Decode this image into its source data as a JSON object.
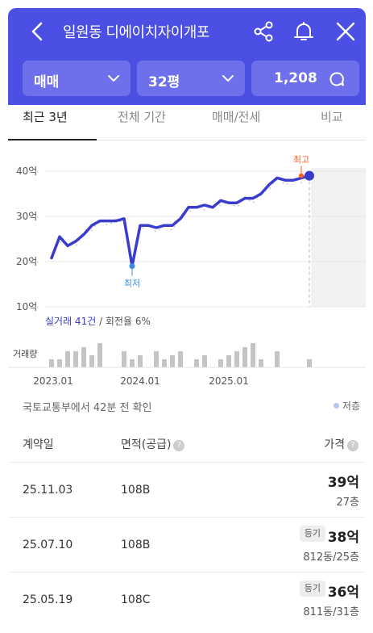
{
  "header": {
    "title": "일원동 디에이치자이개포",
    "back_icon": "chevron-left-icon",
    "share_icon": "share-icon",
    "bell_icon": "bell-icon",
    "close_icon": "close-icon",
    "color": "#4c4fe3"
  },
  "filters": {
    "trade_type": "매매",
    "size": "32평",
    "count": "1,208"
  },
  "tabs": [
    {
      "label": "최근 3년",
      "active": true
    },
    {
      "label": "전체 기간",
      "active": false
    },
    {
      "label": "매매/전세",
      "active": false
    },
    {
      "label": "비교",
      "active": false
    }
  ],
  "chart_data": {
    "type": "line",
    "y_ticks": [
      "40억",
      "30억",
      "20억",
      "10억"
    ],
    "ylim": [
      10,
      40
    ],
    "x_ticks": [
      "2023.01",
      "2024.01",
      "2025.01"
    ],
    "series": [
      {
        "values": [
          20.8,
          25.5,
          23.5,
          24.5,
          26.0,
          28.0,
          29.0,
          29.0,
          29.0,
          29.5,
          19.0,
          28.0,
          28.0,
          27.5,
          28.0,
          28.0,
          29.5,
          32.0,
          32.0,
          32.5,
          32.0,
          33.5,
          33.0,
          33.0,
          34.0,
          34.0,
          35.0,
          37.0,
          38.5,
          38.0,
          38.0,
          38.5,
          39.0
        ]
      }
    ],
    "low_label": "최저",
    "high_label": "최고",
    "volume_label": "거래량",
    "volume": [
      2,
      2,
      4,
      4,
      5,
      3,
      6,
      0,
      0,
      4,
      2,
      3,
      0,
      4,
      2,
      3,
      4,
      0,
      2,
      3,
      0,
      2,
      3,
      4,
      5,
      6,
      2,
      0,
      4,
      0,
      0,
      0,
      2
    ],
    "colors": {
      "line": "#3a3dcc",
      "low": "#3a8be8",
      "high": "#ff5a1f"
    }
  },
  "legend": {
    "deal_count": "실거래 41건",
    "turnover": " / 회전율 6%"
  },
  "source_text": "국토교통부에서 42분 전 확인",
  "low_floor_label": "저층",
  "table": {
    "headers": [
      "계약일",
      "면적(공급)",
      "가격"
    ],
    "rows": [
      {
        "date": "25.11.03",
        "area": "108B",
        "price": "39억",
        "floor": "27층",
        "badge": ""
      },
      {
        "date": "25.07.10",
        "area": "108B",
        "price": "38억",
        "floor": "812동/25층",
        "badge": "등기"
      },
      {
        "date": "25.05.19",
        "area": "108C",
        "price": "36억",
        "floor": "811동/31층",
        "badge": "등기"
      }
    ]
  }
}
